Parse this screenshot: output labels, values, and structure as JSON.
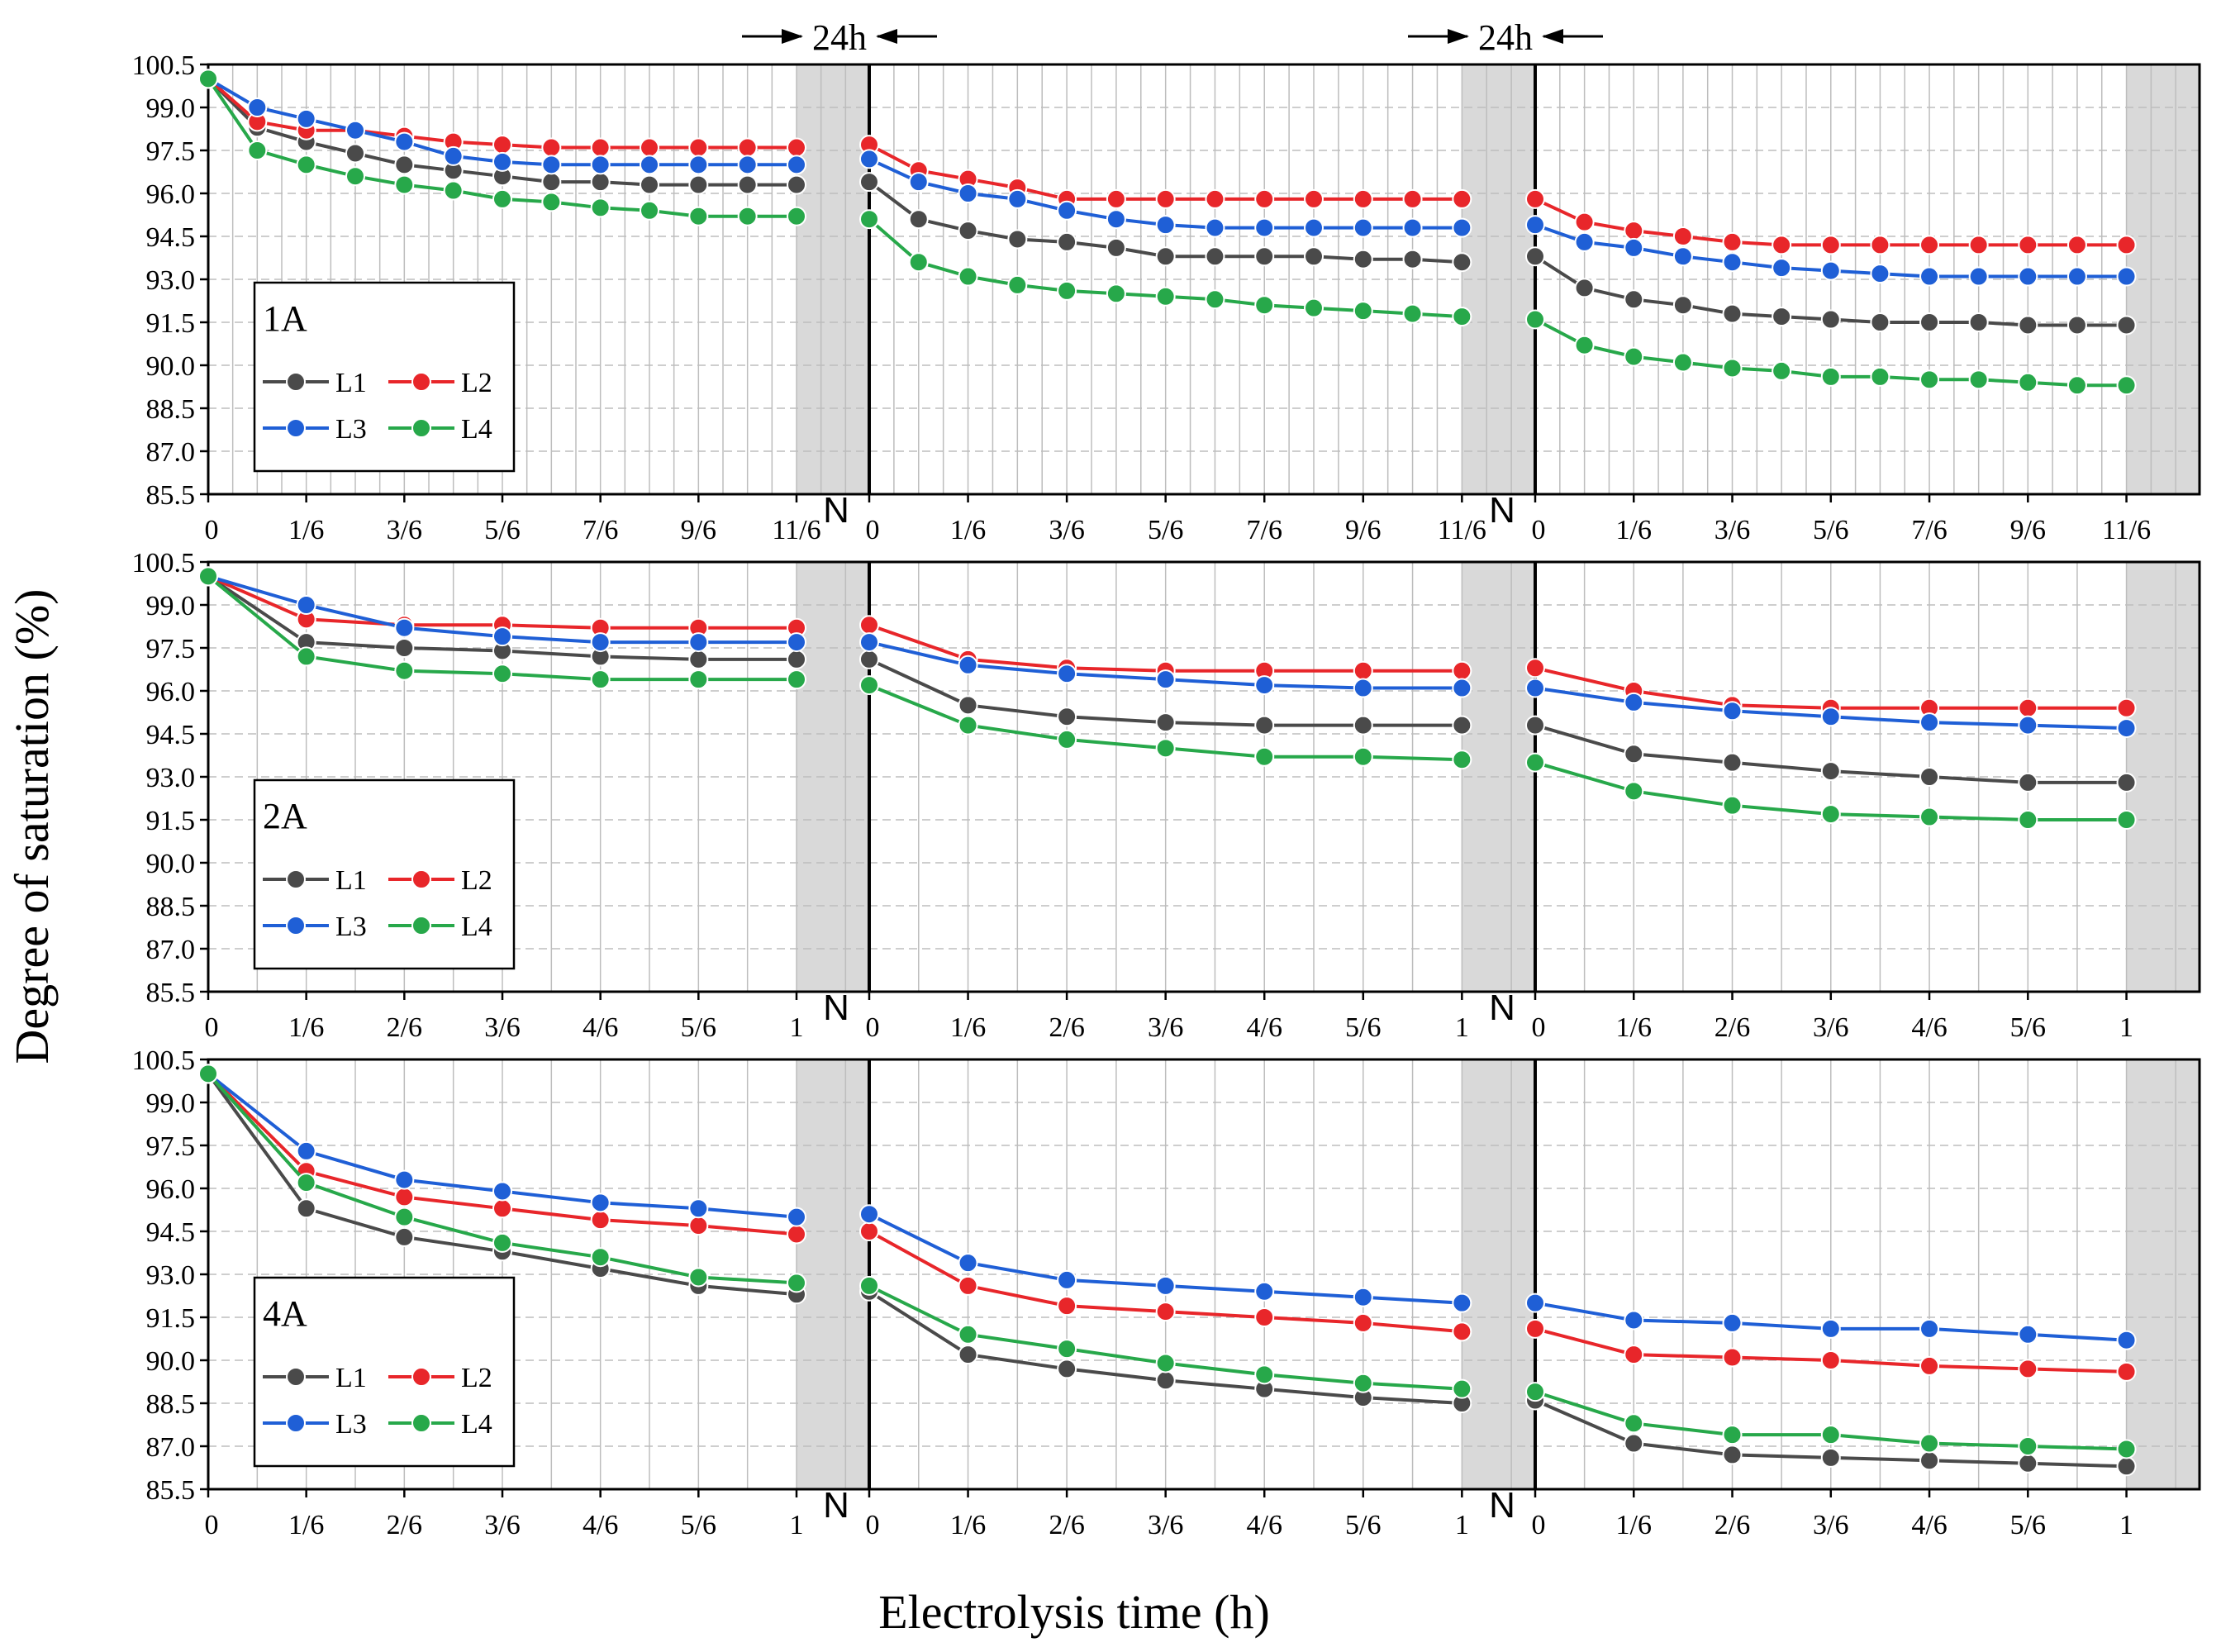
{
  "chart_data": {
    "type": "line",
    "ylabel": "Degree of saturation (%)",
    "xlabel": "Electrolysis time (h)",
    "ylim": [
      85.5,
      100.5
    ],
    "yticks": [
      "85.5",
      "87.0",
      "88.5",
      "90.0",
      "91.5",
      "93.0",
      "94.5",
      "96.0",
      "97.5",
      "99.0",
      "100.5"
    ],
    "gap_label": "N",
    "gap_annotation": "24h",
    "colors": {
      "L1": "#4a4a4a",
      "L2": "#e8262a",
      "L3": "#1f5fd6",
      "L4": "#27a84a"
    },
    "panels": [
      {
        "name": "1A",
        "xticks": [
          [
            "0",
            "1/6",
            "3/6",
            "5/6",
            "7/6",
            "9/6",
            "11/6"
          ],
          [
            "0",
            "1/6",
            "3/6",
            "5/6",
            "7/6",
            "9/6",
            "11/6"
          ],
          [
            "0",
            "1/6",
            "3/6",
            "5/6",
            "7/6",
            "9/6",
            "11/6"
          ]
        ],
        "series": [
          {
            "name": "L1",
            "segments": [
              [
                100.0,
                98.3,
                97.8,
                97.4,
                97.0,
                96.8,
                96.6,
                96.4,
                96.4,
                96.3,
                96.3,
                96.3,
                96.3
              ],
              [
                96.4,
                95.1,
                94.7,
                94.4,
                94.3,
                94.1,
                93.8,
                93.8,
                93.8,
                93.8,
                93.7,
                93.7,
                93.6
              ],
              [
                93.8,
                92.7,
                92.3,
                92.1,
                91.8,
                91.7,
                91.6,
                91.5,
                91.5,
                91.5,
                91.4,
                91.4,
                91.4
              ]
            ]
          },
          {
            "name": "L2",
            "segments": [
              [
                100.0,
                98.5,
                98.2,
                98.2,
                98.0,
                97.8,
                97.7,
                97.6,
                97.6,
                97.6,
                97.6,
                97.6,
                97.6
              ],
              [
                97.7,
                96.8,
                96.5,
                96.2,
                95.8,
                95.8,
                95.8,
                95.8,
                95.8,
                95.8,
                95.8,
                95.8,
                95.8
              ],
              [
                95.8,
                95.0,
                94.7,
                94.5,
                94.3,
                94.2,
                94.2,
                94.2,
                94.2,
                94.2,
                94.2,
                94.2,
                94.2
              ]
            ]
          },
          {
            "name": "L3",
            "segments": [
              [
                100.0,
                99.0,
                98.6,
                98.2,
                97.8,
                97.3,
                97.1,
                97.0,
                97.0,
                97.0,
                97.0,
                97.0,
                97.0
              ],
              [
                97.2,
                96.4,
                96.0,
                95.8,
                95.4,
                95.1,
                94.9,
                94.8,
                94.8,
                94.8,
                94.8,
                94.8,
                94.8
              ],
              [
                94.9,
                94.3,
                94.1,
                93.8,
                93.6,
                93.4,
                93.3,
                93.2,
                93.1,
                93.1,
                93.1,
                93.1,
                93.1
              ]
            ]
          },
          {
            "name": "L4",
            "segments": [
              [
                100.0,
                97.5,
                97.0,
                96.6,
                96.3,
                96.1,
                95.8,
                95.7,
                95.5,
                95.4,
                95.2,
                95.2,
                95.2
              ],
              [
                95.1,
                93.6,
                93.1,
                92.8,
                92.6,
                92.5,
                92.4,
                92.3,
                92.1,
                92.0,
                91.9,
                91.8,
                91.7
              ],
              [
                91.6,
                90.7,
                90.3,
                90.1,
                89.9,
                89.8,
                89.6,
                89.6,
                89.5,
                89.5,
                89.4,
                89.3,
                89.3
              ]
            ]
          }
        ]
      },
      {
        "name": "2A",
        "xticks": [
          [
            "0",
            "1/6",
            "2/6",
            "3/6",
            "4/6",
            "5/6",
            "1"
          ],
          [
            "0",
            "1/6",
            "2/6",
            "3/6",
            "4/6",
            "5/6",
            "1"
          ],
          [
            "0",
            "1/6",
            "2/6",
            "3/6",
            "4/6",
            "5/6",
            "1"
          ]
        ],
        "series": [
          {
            "name": "L1",
            "segments": [
              [
                100.0,
                97.7,
                97.5,
                97.4,
                97.2,
                97.1,
                97.1
              ],
              [
                97.1,
                95.5,
                95.1,
                94.9,
                94.8,
                94.8,
                94.8
              ],
              [
                94.8,
                93.8,
                93.5,
                93.2,
                93.0,
                92.8,
                92.8
              ]
            ]
          },
          {
            "name": "L2",
            "segments": [
              [
                100.0,
                98.5,
                98.3,
                98.3,
                98.2,
                98.2,
                98.2
              ],
              [
                98.3,
                97.1,
                96.8,
                96.7,
                96.7,
                96.7,
                96.7
              ],
              [
                96.8,
                96.0,
                95.5,
                95.4,
                95.4,
                95.4,
                95.4
              ]
            ]
          },
          {
            "name": "L3",
            "segments": [
              [
                100.0,
                99.0,
                98.2,
                97.9,
                97.7,
                97.7,
                97.7
              ],
              [
                97.7,
                96.9,
                96.6,
                96.4,
                96.2,
                96.1,
                96.1
              ],
              [
                96.1,
                95.6,
                95.3,
                95.1,
                94.9,
                94.8,
                94.7
              ]
            ]
          },
          {
            "name": "L4",
            "segments": [
              [
                100.0,
                97.2,
                96.7,
                96.6,
                96.4,
                96.4,
                96.4
              ],
              [
                96.2,
                94.8,
                94.3,
                94.0,
                93.7,
                93.7,
                93.6
              ],
              [
                93.5,
                92.5,
                92.0,
                91.7,
                91.6,
                91.5,
                91.5
              ]
            ]
          }
        ]
      },
      {
        "name": "4A",
        "xticks": [
          [
            "0",
            "1/6",
            "2/6",
            "3/6",
            "4/6",
            "5/6",
            "1"
          ],
          [
            "0",
            "1/6",
            "2/6",
            "3/6",
            "4/6",
            "5/6",
            "1"
          ],
          [
            "0",
            "1/6",
            "2/6",
            "3/6",
            "4/6",
            "5/6",
            "1"
          ]
        ],
        "series": [
          {
            "name": "L1",
            "segments": [
              [
                100.0,
                95.3,
                94.3,
                93.8,
                93.2,
                92.6,
                92.3
              ],
              [
                92.4,
                90.2,
                89.7,
                89.3,
                89.0,
                88.7,
                88.5
              ],
              [
                88.6,
                87.1,
                86.7,
                86.6,
                86.5,
                86.4,
                86.3
              ]
            ]
          },
          {
            "name": "L2",
            "segments": [
              [
                100.0,
                96.6,
                95.7,
                95.3,
                94.9,
                94.7,
                94.4
              ],
              [
                94.5,
                92.6,
                91.9,
                91.7,
                91.5,
                91.3,
                91.0
              ],
              [
                91.1,
                90.2,
                90.1,
                90.0,
                89.8,
                89.7,
                89.6
              ]
            ]
          },
          {
            "name": "L3",
            "segments": [
              [
                100.0,
                97.3,
                96.3,
                95.9,
                95.5,
                95.3,
                95.0
              ],
              [
                95.1,
                93.4,
                92.8,
                92.6,
                92.4,
                92.2,
                92.0
              ],
              [
                92.0,
                91.4,
                91.3,
                91.1,
                91.1,
                90.9,
                90.7
              ]
            ]
          },
          {
            "name": "L4",
            "segments": [
              [
                100.0,
                96.2,
                95.0,
                94.1,
                93.6,
                92.9,
                92.7
              ],
              [
                92.6,
                90.9,
                90.4,
                89.9,
                89.5,
                89.2,
                89.0
              ],
              [
                88.9,
                87.8,
                87.4,
                87.4,
                87.1,
                87.0,
                86.9
              ]
            ]
          }
        ]
      }
    ]
  }
}
